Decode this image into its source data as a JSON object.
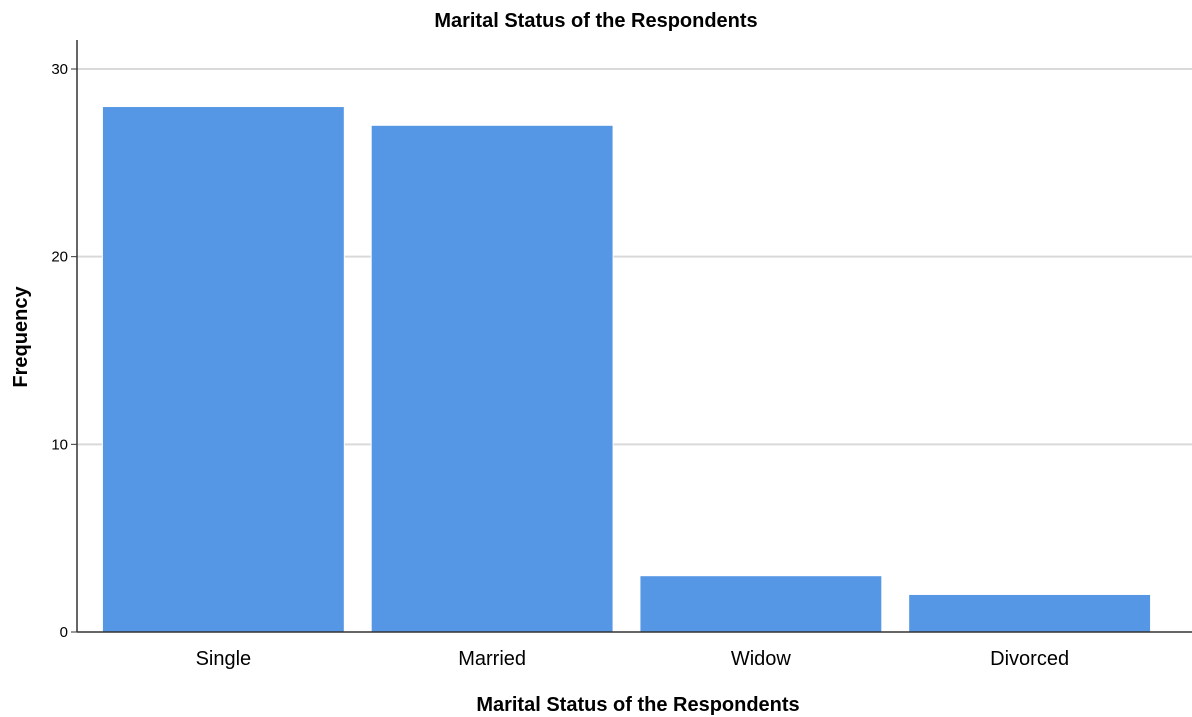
{
  "chart_data": {
    "type": "bar",
    "title": "Marital Status of the Respondents",
    "xlabel": "Marital Status of the Respondents",
    "ylabel": "Frequency",
    "categories": [
      "Single",
      "Married",
      "Widow",
      "Divorced"
    ],
    "values": [
      28,
      27,
      3,
      2
    ],
    "ylim": [
      0,
      30
    ],
    "yticks": [
      "0",
      "10",
      "20",
      "30"
    ],
    "grid": true,
    "bar_color": "#5596e5",
    "grid_color": "#d9d9d9",
    "axis_color": "#333333"
  }
}
